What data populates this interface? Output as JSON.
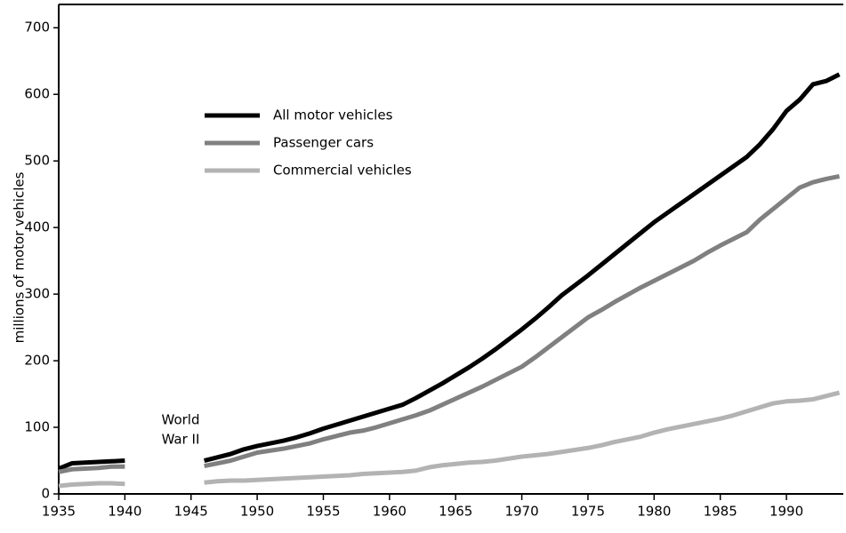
{
  "chart_data": {
    "type": "line",
    "y_label": "millions of motor vehicles",
    "annotation": [
      "World",
      "War II"
    ],
    "x": [
      1935,
      1936,
      1937,
      1938,
      1939,
      1940,
      1941,
      1942,
      1943,
      1944,
      1945,
      1946,
      1947,
      1948,
      1949,
      1950,
      1951,
      1952,
      1953,
      1954,
      1955,
      1956,
      1957,
      1958,
      1959,
      1960,
      1961,
      1962,
      1963,
      1964,
      1965,
      1966,
      1967,
      1968,
      1969,
      1970,
      1971,
      1972,
      1973,
      1974,
      1975,
      1976,
      1977,
      1978,
      1979,
      1980,
      1981,
      1982,
      1983,
      1984,
      1985,
      1986,
      1987,
      1988,
      1989,
      1990,
      1991,
      1992,
      1993,
      1994
    ],
    "series": [
      {
        "name": "All motor vehicles",
        "color": "#000000",
        "values": [
          38,
          46,
          47,
          48,
          49,
          50,
          null,
          null,
          null,
          null,
          null,
          50,
          55,
          60,
          67,
          72,
          76,
          80,
          85,
          91,
          98,
          104,
          110,
          116,
          122,
          128,
          134,
          144,
          155,
          166,
          178,
          190,
          203,
          217,
          232,
          247,
          263,
          280,
          298,
          313,
          328,
          344,
          360,
          376,
          392,
          408,
          422,
          436,
          450,
          464,
          478,
          492,
          506,
          525,
          548,
          575,
          592,
          615,
          620,
          630
        ]
      },
      {
        "name": "Passenger cars",
        "color": "#808080",
        "values": [
          33,
          37,
          38,
          39,
          41,
          41,
          null,
          null,
          null,
          null,
          null,
          42,
          46,
          50,
          56,
          62,
          65,
          68,
          72,
          76,
          82,
          87,
          92,
          95,
          100,
          106,
          112,
          118,
          125,
          134,
          143,
          152,
          161,
          171,
          181,
          191,
          205,
          220,
          235,
          250,
          265,
          276,
          288,
          299,
          310,
          320,
          330,
          340,
          350,
          362,
          373,
          383,
          393,
          412,
          428,
          444,
          460,
          468,
          473,
          477
        ]
      },
      {
        "name": "Commercial vehicles",
        "color": "#b3b3b3",
        "values": [
          12,
          14,
          15,
          16,
          16,
          15,
          null,
          null,
          null,
          null,
          null,
          17,
          19,
          20,
          20,
          21,
          22,
          23,
          24,
          25,
          26,
          27,
          28,
          30,
          31,
          32,
          33,
          35,
          40,
          43,
          45,
          47,
          48,
          50,
          53,
          56,
          58,
          60,
          63,
          66,
          69,
          73,
          78,
          82,
          86,
          92,
          97,
          101,
          105,
          109,
          113,
          118,
          124,
          130,
          136,
          139,
          140,
          142,
          147,
          152
        ]
      }
    ],
    "xlim": [
      1935,
      1994.3
    ],
    "xticks": [
      1935,
      1940,
      1945,
      1950,
      1955,
      1960,
      1965,
      1970,
      1975,
      1980,
      1985,
      1990
    ],
    "ylim": [
      0,
      735
    ],
    "yticks": [
      0,
      100,
      200,
      300,
      400,
      500,
      600,
      700
    ]
  }
}
